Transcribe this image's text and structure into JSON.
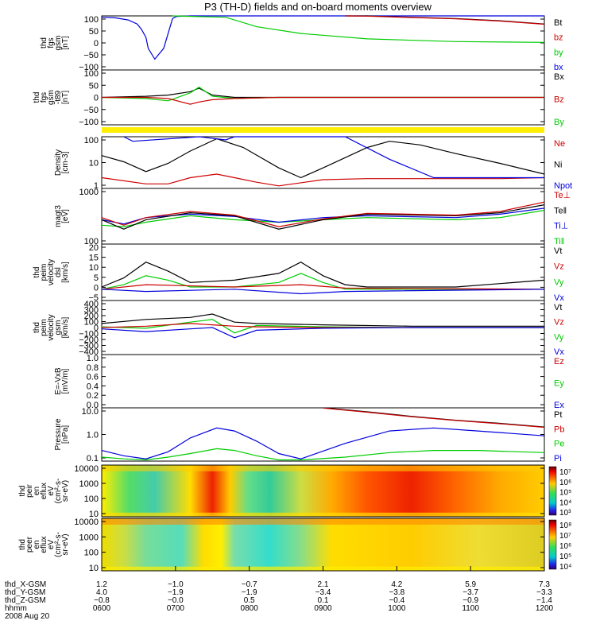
{
  "title": "P3 (TH-D) fields and on-board moments overview",
  "colors": {
    "black": "#000000",
    "red": "#cc0000",
    "green": "#00cc00",
    "blue": "#0000dd",
    "yellow": "#ffee00"
  },
  "chart_data": [
    {
      "type": "line",
      "ylabel": [
        "thd",
        "fgs",
        "gsm",
        "[nT]"
      ],
      "ylim": [
        -100,
        100
      ],
      "ticks": [
        "100",
        "50",
        "0",
        "−50",
        "−100"
      ],
      "legend": [
        {
          "name": "Bt",
          "color": "black"
        },
        {
          "name": "bz",
          "color": "red"
        },
        {
          "name": "by",
          "color": "green"
        },
        {
          "name": "bx",
          "color": "blue"
        }
      ],
      "series": [
        {
          "name": "bx",
          "color": "blue",
          "x": [
            0,
            0.03,
            0.06,
            0.08,
            0.09,
            0.1,
            0.105,
            0.12,
            0.14,
            0.16,
            0.165,
            0.17,
            0.2,
            0.23,
            0.3,
            0.5,
            0.7,
            0.85,
            1
          ],
          "y": [
            95,
            93,
            85,
            70,
            50,
            20,
            -20,
            -60,
            -20,
            90,
            95,
            98,
            102,
            102,
            102,
            102,
            101,
            101,
            101
          ]
        },
        {
          "name": "by",
          "color": "green",
          "x": [
            0.16,
            0.28,
            0.35,
            0.45,
            0.6,
            0.8,
            1
          ],
          "y": [
            100,
            95,
            60,
            35,
            15,
            5,
            2
          ]
        },
        {
          "name": "Bt",
          "color": "black",
          "x": [
            0.55,
            0.6,
            0.7,
            0.8,
            0.9,
            1
          ],
          "y": [
            102,
            100,
            95,
            90,
            82,
            70
          ]
        },
        {
          "name": "bz",
          "color": "red",
          "x": [
            0.55,
            0.6,
            0.7,
            0.8,
            0.9,
            1
          ],
          "y": [
            101,
            99,
            94,
            89,
            81,
            69
          ]
        }
      ]
    },
    {
      "type": "line",
      "ylabel": [
        "thd",
        "fgs",
        "gsm",
        "-t89",
        "[nT]"
      ],
      "ylim": [
        -120,
        120
      ],
      "ticks": [
        "100",
        "50",
        "0",
        "−50",
        "−100"
      ],
      "legend": [
        {
          "name": "Bx",
          "color": "black"
        },
        {
          "name": "Bz",
          "color": "red"
        },
        {
          "name": "By",
          "color": "green"
        }
      ],
      "series": [
        {
          "name": "Bx",
          "color": "black",
          "x": [
            0,
            0.1,
            0.15,
            0.2,
            0.22,
            0.25,
            0.3,
            0.4,
            0.6,
            0.8,
            1
          ],
          "y": [
            0,
            5,
            10,
            25,
            40,
            10,
            0,
            0,
            0,
            0,
            0
          ]
        },
        {
          "name": "By",
          "color": "green",
          "x": [
            0,
            0.1,
            0.15,
            0.2,
            0.22,
            0.25,
            0.3,
            0.4,
            0.6,
            0.8,
            1
          ],
          "y": [
            0,
            -5,
            -15,
            20,
            45,
            5,
            -5,
            0,
            0,
            0,
            0
          ]
        },
        {
          "name": "Bz",
          "color": "red",
          "x": [
            0,
            0.1,
            0.15,
            0.2,
            0.22,
            0.25,
            0.3,
            0.4,
            0.6,
            0.8,
            1
          ],
          "y": [
            0,
            0,
            -5,
            -30,
            -20,
            -10,
            -5,
            0,
            0,
            0,
            0
          ]
        }
      ]
    },
    {
      "type": "line",
      "log": true,
      "ylabel": [
        "Density",
        "[cm-3]"
      ],
      "ylim": [
        0.3,
        100
      ],
      "ticks": [
        "100",
        "10",
        "1"
      ],
      "legend": [
        {
          "name": "Ne",
          "color": "red"
        },
        {
          "name": "Ni",
          "color": "black"
        },
        {
          "name": "Npot",
          "color": "blue"
        }
      ],
      "series": [
        {
          "name": "Ni",
          "color": "black",
          "x": [
            0,
            0.05,
            0.1,
            0.15,
            0.2,
            0.26,
            0.32,
            0.4,
            0.45,
            0.5,
            0.6,
            0.65,
            0.72,
            0.8,
            0.9,
            1
          ],
          "y": [
            12,
            6,
            2,
            5,
            20,
            80,
            30,
            3,
            1,
            3,
            30,
            60,
            40,
            15,
            5,
            1.5
          ]
        },
        {
          "name": "Ne",
          "color": "red",
          "x": [
            0,
            0.1,
            0.15,
            0.2,
            0.26,
            0.3,
            0.35,
            0.4,
            0.5,
            0.6,
            0.7,
            0.8,
            0.9,
            1
          ],
          "y": [
            1,
            0.5,
            0.5,
            1,
            1.5,
            1,
            0.6,
            0.4,
            0.8,
            0.9,
            0.9,
            0.9,
            0.9,
            1
          ]
        },
        {
          "name": "Npot",
          "color": "blue",
          "x": [
            0.05,
            0.07,
            0.22,
            0.28,
            0.3,
            0.55,
            0.65,
            0.75,
            0.85,
            1
          ],
          "y": [
            100,
            60,
            100,
            70,
            100,
            100,
            8,
            1,
            1,
            1
          ]
        }
      ]
    },
    {
      "type": "line",
      "log": true,
      "ylabel": [
        "magt3",
        "[eV]"
      ],
      "ylim": [
        50,
        3000
      ],
      "ticks": [
        "1000",
        "100"
      ],
      "legend": [
        {
          "name": "Te⊥",
          "color": "red"
        },
        {
          "name": "Te‖",
          "color": "black"
        },
        {
          "name": "Ti⊥",
          "color": "blue"
        },
        {
          "name": "Ti‖",
          "color": "green"
        }
      ],
      "series": [
        {
          "name": "Ti‖",
          "color": "green",
          "x": [
            0,
            0.05,
            0.1,
            0.2,
            0.3,
            0.4,
            0.5,
            0.6,
            0.8,
            0.9,
            1
          ],
          "y": [
            200,
            180,
            250,
            400,
            300,
            250,
            300,
            350,
            300,
            350,
            600
          ]
        },
        {
          "name": "Ti⊥",
          "color": "blue",
          "x": [
            0,
            0.05,
            0.1,
            0.2,
            0.3,
            0.4,
            0.5,
            0.6,
            0.8,
            0.9,
            1
          ],
          "y": [
            300,
            220,
            350,
            450,
            380,
            250,
            350,
            400,
            350,
            450,
            700
          ]
        },
        {
          "name": "Te‖",
          "color": "black",
          "x": [
            0,
            0.05,
            0.1,
            0.2,
            0.3,
            0.4,
            0.5,
            0.6,
            0.8,
            0.9,
            1
          ],
          "y": [
            300,
            150,
            300,
            500,
            400,
            150,
            300,
            450,
            400,
            500,
            900
          ]
        },
        {
          "name": "Te⊥",
          "color": "red",
          "x": [
            0,
            0.05,
            0.1,
            0.2,
            0.3,
            0.4,
            0.5,
            0.6,
            0.8,
            0.9,
            1
          ],
          "y": [
            350,
            200,
            350,
            550,
            420,
            180,
            320,
            480,
            420,
            550,
            1100
          ]
        }
      ]
    },
    {
      "type": "line",
      "ylabel": [
        "thd",
        "peim",
        "velocity",
        "dsl",
        "[km/s]"
      ],
      "ylim": [
        -5,
        20
      ],
      "ticks": [
        "20",
        "15",
        "10",
        "5",
        "0",
        "−5"
      ],
      "legend": [
        {
          "name": "Vt",
          "color": "black"
        },
        {
          "name": "Vz",
          "color": "red"
        },
        {
          "name": "Vy",
          "color": "green"
        },
        {
          "name": "Vx",
          "color": "blue"
        }
      ],
      "series": [
        {
          "name": "Vt",
          "color": "black",
          "x": [
            0,
            0.05,
            0.1,
            0.15,
            0.2,
            0.3,
            0.4,
            0.45,
            0.5,
            0.55,
            0.6,
            0.7,
            0.8,
            1
          ],
          "y": [
            1,
            5,
            12,
            8,
            3,
            4,
            7,
            12,
            6,
            2,
            1,
            1,
            1,
            4
          ]
        },
        {
          "name": "Vy",
          "color": "green",
          "x": [
            0,
            0.05,
            0.1,
            0.15,
            0.2,
            0.3,
            0.4,
            0.45,
            0.5,
            0.55,
            0.6,
            1
          ],
          "y": [
            0,
            2,
            6,
            4,
            1,
            1,
            3,
            7,
            3,
            0,
            0,
            0
          ]
        },
        {
          "name": "Vz",
          "color": "red",
          "x": [
            0,
            0.1,
            0.3,
            0.45,
            0.55,
            1
          ],
          "y": [
            0,
            2,
            1,
            2,
            0.5,
            0
          ]
        },
        {
          "name": "Vx",
          "color": "blue",
          "x": [
            0,
            0.1,
            0.3,
            0.45,
            0.55,
            1
          ],
          "y": [
            0,
            -1,
            0,
            -2,
            -1,
            0
          ]
        }
      ]
    },
    {
      "type": "line",
      "ylabel": [
        "thd",
        "peim",
        "velocity",
        "gsm",
        "[km/s]"
      ],
      "ylim": [
        -400,
        400
      ],
      "ticks": [
        "400",
        "300",
        "200",
        "100",
        "0",
        "−100",
        "−200",
        "−300",
        "−400"
      ],
      "legend": [
        {
          "name": "Vt",
          "color": "black"
        },
        {
          "name": "Vz",
          "color": "red"
        },
        {
          "name": "Vy",
          "color": "green"
        },
        {
          "name": "Vx",
          "color": "blue"
        }
      ],
      "series": [
        {
          "name": "Vt",
          "color": "black",
          "x": [
            0,
            0.1,
            0.2,
            0.25,
            0.3,
            0.35,
            0.5,
            0.7,
            1
          ],
          "y": [
            60,
            120,
            150,
            200,
            80,
            60,
            40,
            20,
            20
          ]
        },
        {
          "name": "Vy",
          "color": "green",
          "x": [
            0,
            0.1,
            0.2,
            0.25,
            0.3,
            0.35,
            0.5,
            0.7,
            1
          ],
          "y": [
            10,
            -10,
            80,
            120,
            -80,
            30,
            10,
            0,
            0
          ]
        },
        {
          "name": "Vz",
          "color": "red",
          "x": [
            0,
            0.1,
            0.2,
            0.25,
            0.3,
            0.35,
            0.5,
            0.7,
            1
          ],
          "y": [
            0,
            20,
            60,
            40,
            20,
            10,
            0,
            0,
            0
          ]
        },
        {
          "name": "Vx",
          "color": "blue",
          "x": [
            0,
            0.1,
            0.2,
            0.25,
            0.3,
            0.35,
            0.5,
            0.7,
            1
          ],
          "y": [
            -20,
            -60,
            -20,
            0,
            -150,
            -40,
            -10,
            0,
            0
          ]
        }
      ]
    },
    {
      "type": "line",
      "ylabel": [
        "E=-VxB",
        "[mV/m]"
      ],
      "ylim": [
        0,
        1
      ],
      "ticks": [
        "1.0",
        "0.8",
        "0.6",
        "0.4",
        "0.2",
        "0.0"
      ],
      "legend": [
        {
          "name": "Ez",
          "color": "red"
        },
        {
          "name": "Ey",
          "color": "green"
        },
        {
          "name": "Ex",
          "color": "blue"
        }
      ],
      "series": []
    },
    {
      "type": "line",
      "log": true,
      "ylabel": [
        "Pressure",
        "[nPa]"
      ],
      "ylim": [
        0.03,
        30
      ],
      "ticks": [
        "10.0",
        "1.0",
        "0.1"
      ],
      "legend": [
        {
          "name": "Pt",
          "color": "black"
        },
        {
          "name": "Pb",
          "color": "red"
        },
        {
          "name": "Pe",
          "color": "green"
        },
        {
          "name": "Pi",
          "color": "blue"
        }
      ],
      "series": [
        {
          "name": "Pi",
          "color": "blue",
          "x": [
            0,
            0.05,
            0.1,
            0.15,
            0.2,
            0.26,
            0.3,
            0.35,
            0.4,
            0.45,
            0.55,
            0.65,
            0.75,
            0.85,
            1
          ],
          "y": [
            0.12,
            0.06,
            0.04,
            0.1,
            0.6,
            2.2,
            1.5,
            0.4,
            0.08,
            0.04,
            0.3,
            1.5,
            2.2,
            1.5,
            0.8
          ]
        },
        {
          "name": "Pe",
          "color": "green",
          "x": [
            0,
            0.05,
            0.1,
            0.15,
            0.2,
            0.26,
            0.3,
            0.35,
            0.4,
            0.45,
            0.55,
            0.65,
            0.75,
            0.85,
            1
          ],
          "y": [
            0.05,
            0.04,
            0.035,
            0.05,
            0.08,
            0.15,
            0.12,
            0.06,
            0.035,
            0.035,
            0.05,
            0.09,
            0.12,
            0.12,
            0.09
          ]
        },
        {
          "name": "Pt",
          "color": "black",
          "x": [
            0.5,
            0.6,
            0.7,
            0.8,
            0.9,
            1
          ],
          "y": [
            30,
            18,
            10,
            6,
            4,
            2.5
          ]
        },
        {
          "name": "Pb",
          "color": "red",
          "x": [
            0.5,
            0.6,
            0.7,
            0.8,
            0.9,
            1
          ],
          "y": [
            29,
            17,
            9.5,
            5.8,
            3.8,
            2.4
          ]
        }
      ]
    },
    {
      "type": "heatmap",
      "ylabel": [
        "thd",
        "peir",
        "en",
        "eflux",
        "eV",
        "(cm²-s-",
        "sr-eV)"
      ],
      "ytick_log": true,
      "ticks": [
        "10000",
        "1000",
        "100",
        "10"
      ],
      "colorbar": [
        "10⁷",
        "10⁶",
        "10⁵",
        "10⁴",
        "10³"
      ]
    },
    {
      "type": "heatmap",
      "ylabel": [
        "thd",
        "peer",
        "en",
        "eflux",
        "eV",
        "(cm²-s-",
        "sr-eV)"
      ],
      "ytick_log": true,
      "ticks": [
        "10000",
        "1000",
        "100",
        "10"
      ],
      "colorbar": [
        "10⁸",
        "10⁷",
        "10⁶",
        "10⁵",
        "10⁴"
      ]
    }
  ],
  "x_axis": {
    "labels": [
      {
        "name": "thd_X-GSM",
        "values": [
          "1.2",
          "−1.0",
          "−0.7",
          "2.1",
          "4.2",
          "5.9",
          "7.3"
        ]
      },
      {
        "name": "thd_Y-GSM",
        "values": [
          "4.0",
          "−1.9",
          "−1.9",
          "−3.4",
          "−3.8",
          "−3.7",
          "−3.3"
        ]
      },
      {
        "name": "thd_Z-GSM",
        "values": [
          "−0.8",
          "−0.0",
          "0.5",
          "0.1",
          "−0.4",
          "−0.9",
          "−1.4"
        ]
      },
      {
        "name": "hhmm",
        "values": [
          "0600",
          "0700",
          "0800",
          "0900",
          "1000",
          "1100",
          "1200"
        ]
      }
    ],
    "date": "2008 Aug 20"
  }
}
